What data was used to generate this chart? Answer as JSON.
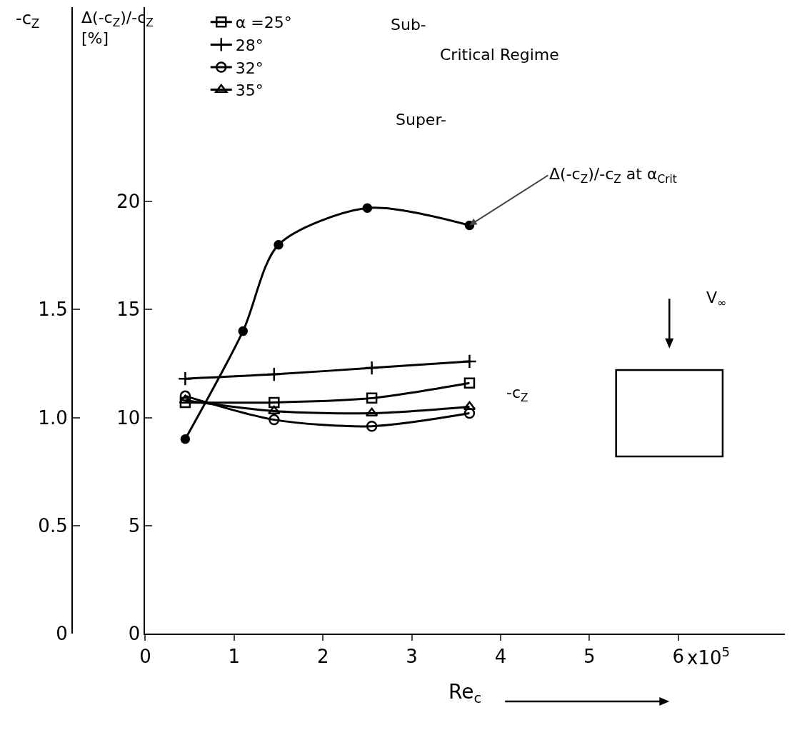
{
  "chart_data": {
    "type": "line",
    "xlabel": "Re$_{c}$",
    "ylabel": "Δ(-c$_{Z}$)/-c$_{Z}$ [%]",
    "y2label": "-c$_{Z}$",
    "xlim": [
      0,
      7.2
    ],
    "xticks": [
      0,
      1,
      2,
      3,
      4,
      5,
      6
    ],
    "ylim": [
      0,
      29
    ],
    "yticks": [
      0,
      5,
      10,
      15,
      20
    ],
    "y2lim": [
      0,
      2.9
    ],
    "y2ticks": [
      0,
      0.5,
      {
        "value": 1,
        "label": "1.0"
      },
      1.5
    ],
    "grid": false,
    "legend": "top left",
    "line_style": "solid",
    "series": [
      {
        "name": "α =25°",
        "color": "#000000",
        "axis": "y2",
        "marker": "square",
        "x": [
          0.45,
          1.45,
          2.55,
          3.65
        ],
        "values": [
          1.07,
          1.07,
          1.09,
          1.16
        ]
      },
      {
        "name": "28°",
        "color": "#000000",
        "axis": "y2",
        "marker": "cross",
        "x": [
          0.45,
          1.45,
          2.55,
          3.65
        ],
        "values": [
          1.18,
          1.2,
          1.23,
          1.26
        ]
      },
      {
        "name": "32°",
        "color": "#000000",
        "axis": "y2",
        "marker": "circle",
        "x": [
          0.45,
          1.45,
          2.55,
          3.65
        ],
        "values": [
          1.1,
          0.99,
          0.96,
          1.02
        ]
      },
      {
        "name": "35°",
        "color": "#000000",
        "axis": "y2",
        "marker": "triangle",
        "x": [
          0.45,
          1.45,
          2.55,
          3.65
        ],
        "values": [
          1.08,
          1.03,
          1.02,
          1.05
        ]
      },
      {
        "color": "#000000",
        "axis": "y",
        "marker": "circle",
        "x": [
          0.45,
          1.1,
          1.5,
          2.5,
          3.65
        ],
        "values": [
          9,
          14,
          18,
          19.7,
          18.9
        ]
      }
    ],
    "annotations": [
      "Sub-",
      "Critical Regime",
      "Super-",
      "-c$_{Z}$",
      {
        "text": "Δ(-c$_{Z}$)/-c$_{Z}$ at α$_{Crit}$",
        "x": 3.65,
        "y": 18.9
      },
      "V$_{∞}$",
      "x10$^{5}$"
    ]
  }
}
